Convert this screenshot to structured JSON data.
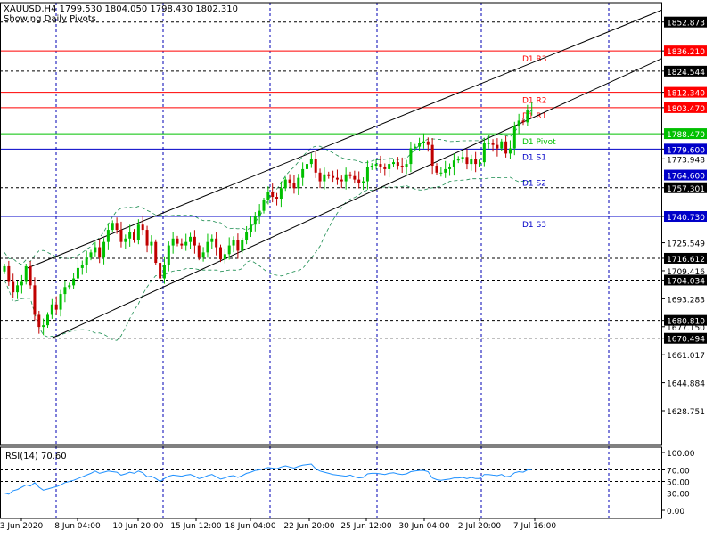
{
  "header": {
    "symbol_line": "XAUUSD,H4  1799.530 1804.050 1798.430 1802.310",
    "pivot_note": "Showing Daily Pivots"
  },
  "rsi_panel": {
    "label": "RSI(14) 70.60"
  },
  "colors": {
    "background": "#ffffff",
    "bull": "#00c000",
    "bear": "#c00000",
    "resistance": "#ff0000",
    "pivot": "#00c000",
    "support": "#0000c8",
    "channel": "#000000",
    "bands": "#1a8c4f",
    "rsi": "#1e90ff",
    "grid": "#0000b4",
    "tag_red": "#ff0000",
    "tag_green": "#00c000",
    "tag_blue": "#0000c8",
    "tag_black": "#000000"
  },
  "chart_data": {
    "type": "candlestick",
    "symbol": "XAUUSD",
    "timeframe": "H4",
    "ohlc_current": {
      "open": 1799.53,
      "high": 1804.05,
      "low": 1798.43,
      "close": 1802.31
    },
    "ylim": [
      1615.0,
      1858.0
    ],
    "x_ticks": [
      "3 Jun 2020",
      "8 Jun 04:00",
      "10 Jun 20:00",
      "15 Jun 12:00",
      "18 Jun 04:00",
      "22 Jun 20:00",
      "25 Jun 12:00",
      "30 Jun 04:00",
      "2 Jul 20:00",
      "7 Jul 16:00"
    ],
    "y_ticks": [
      1852.873,
      1836.21,
      1824.544,
      1812.34,
      1803.47,
      1788.47,
      1779.6,
      1773.948,
      1764.6,
      1757.301,
      1740.73,
      1725.549,
      1716.612,
      1709.416,
      1704.034,
      1693.283,
      1680.81,
      1677.15,
      1670.494,
      1661.017,
      1644.884,
      1628.751
    ],
    "pivots": [
      {
        "label": "D1 R3",
        "value": 1836.21,
        "kind": "resistance"
      },
      {
        "label": "D1 R2",
        "value": 1812.34,
        "kind": "resistance"
      },
      {
        "label": "D1 R1",
        "value": 1803.47,
        "kind": "resistance"
      },
      {
        "label": "D1 Pivot",
        "value": 1788.47,
        "kind": "pivot"
      },
      {
        "label": "D1 S1",
        "value": 1779.6,
        "kind": "support"
      },
      {
        "label": "D1 S2",
        "value": 1764.6,
        "kind": "support"
      },
      {
        "label": "D1 S3",
        "value": 1740.73,
        "kind": "support"
      }
    ],
    "dashed_levels": [
      1852.873,
      1824.544,
      1757.301,
      1716.612,
      1704.034,
      1680.81,
      1670.494
    ],
    "channel": {
      "lower": [
        [
          22.0,
          1670.494
        ],
        [
          320.0,
          1740.73
        ]
      ],
      "upper": [
        [
          31.0,
          1711.0
        ],
        [
          361.0,
          1780.0
        ]
      ]
    },
    "closes": [
      1712.0,
      1703.0,
      1697.0,
      1701.0,
      1703.0,
      1712.0,
      1701.0,
      1684.0,
      1677.0,
      1678.0,
      1684.0,
      1690.0,
      1687.0,
      1696.0,
      1700.0,
      1701.0,
      1705.0,
      1711.0,
      1713.0,
      1717.0,
      1720.0,
      1723.0,
      1717.0,
      1726.0,
      1733.0,
      1737.0,
      1733.0,
      1726.0,
      1728.0,
      1732.0,
      1727.0,
      1736.0,
      1733.0,
      1724.0,
      1726.0,
      1714.0,
      1705.0,
      1713.0,
      1724.0,
      1728.0,
      1725.0,
      1724.0,
      1726.0,
      1729.0,
      1724.0,
      1717.0,
      1720.0,
      1726.0,
      1728.0,
      1723.0,
      1716.0,
      1719.0,
      1724.0,
      1727.0,
      1721.0,
      1727.0,
      1732.0,
      1736.0,
      1741.0,
      1744.0,
      1750.0,
      1755.0,
      1752.0,
      1751.0,
      1757.0,
      1762.0,
      1760.0,
      1757.0,
      1763.0,
      1768.0,
      1771.0,
      1774.0,
      1766.0,
      1761.0,
      1765.0,
      1764.0,
      1763.0,
      1762.0,
      1761.0,
      1765.0,
      1764.0,
      1762.0,
      1760.0,
      1761.0,
      1769.0,
      1770.0,
      1771.0,
      1769.0,
      1768.0,
      1771.0,
      1772.0,
      1770.0,
      1769.0,
      1771.0,
      1780.0,
      1781.0,
      1783.0,
      1784.0,
      1782.0,
      1770.0,
      1766.0,
      1766.0,
      1768.0,
      1769.0,
      1773.0,
      1774.0,
      1775.0,
      1771.0,
      1774.0,
      1771.0,
      1772.0,
      1783.0,
      1783.0,
      1782.0,
      1780.0,
      1784.0,
      1777.0,
      1780.0,
      1793.0,
      1796.0,
      1795.0,
      1802.0,
      1802.31
    ],
    "rsi": {
      "label": "RSI(14) 70.60",
      "last": 70.6,
      "ylim": [
        0,
        100
      ],
      "levels": [
        100.0,
        70.0,
        50.0,
        30.0,
        0.0
      ],
      "values": [
        30.0,
        28.0,
        34.0,
        36.0,
        40.0,
        44.0,
        42.0,
        48.0,
        40.0,
        35.0,
        37.0,
        39.0,
        41.0,
        44.0,
        48.0,
        50.0,
        52.0,
        55.0,
        58.0,
        61.0,
        64.0,
        68.0,
        64.0,
        66.0,
        68.0,
        67.0,
        66.0,
        61.0,
        63.0,
        66.0,
        64.0,
        68.0,
        65.0,
        58.0,
        59.0,
        55.0,
        50.0,
        55.0,
        59.0,
        61.0,
        60.0,
        59.0,
        61.0,
        62.0,
        59.0,
        55.0,
        57.0,
        60.0,
        62.0,
        58.0,
        54.0,
        56.0,
        59.0,
        60.0,
        57.0,
        60.0,
        64.0,
        66.0,
        69.0,
        70.0,
        72.0,
        74.0,
        73.0,
        72.0,
        75.0,
        77.0,
        75.0,
        73.0,
        76.0,
        78.0,
        79.0,
        80.0,
        72.0,
        68.0,
        66.0,
        64.0,
        62.0,
        61.0,
        60.0,
        59.0,
        61.0,
        58.0,
        56.0,
        57.0,
        63.0,
        64.0,
        64.0,
        63.0,
        62.0,
        64.0,
        65.0,
        63.0,
        62.0,
        63.0,
        67.0,
        68.0,
        69.0,
        69.0,
        67.0,
        56.0,
        53.0,
        52.0,
        53.0,
        54.0,
        56.0,
        56.0,
        57.0,
        55.0,
        57.0,
        55.0,
        55.0,
        62.0,
        62.0,
        61.0,
        60.0,
        62.0,
        58.0,
        59.0,
        65.0,
        67.0,
        66.0,
        70.0,
        70.6
      ]
    }
  }
}
